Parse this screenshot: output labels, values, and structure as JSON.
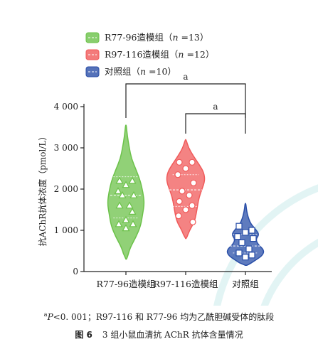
{
  "chart_data": {
    "type": "violin",
    "ylabel": "抗AChR抗体浓度（pmol/L）",
    "ylim": [
      0,
      4000
    ],
    "yticks": [
      0,
      1000,
      2000,
      3000,
      4000
    ],
    "ytick_labels": [
      "0",
      "1 000",
      "2 000",
      "3 000",
      "4 000"
    ],
    "categories": [
      "R77-96造模组",
      "R97-116造模组",
      "对照组"
    ],
    "legend_position": "top-left",
    "legend": [
      {
        "prefix": "R77-96造模组（",
        "n_label": "n",
        "suffix": " =13）"
      },
      {
        "prefix": "R97-116造模组（",
        "n_label": "n",
        "suffix": " =12）"
      },
      {
        "prefix": "对照组（",
        "n_label": "n",
        "suffix": " =10）"
      }
    ],
    "series": [
      {
        "name": "R77-96造模组",
        "color": "#6cc24a",
        "marker": "triangle",
        "median": 1850,
        "quartiles": [
          1300,
          2300
        ],
        "range": [
          300,
          3550
        ],
        "values": [
          2200,
          2200,
          2100,
          1950,
          1850,
          1850,
          1600,
          1600,
          1450,
          1250,
          1150,
          1150,
          1050
        ]
      },
      {
        "name": "R97-116造模组",
        "color": "#f05a5a",
        "marker": "circle",
        "median": 1980,
        "quartiles": [
          1580,
          2350
        ],
        "range": [
          800,
          3200
        ],
        "values": [
          2650,
          2650,
          2500,
          2350,
          2150,
          1950,
          1850,
          1700,
          1600,
          1500,
          1350,
          1200
        ]
      },
      {
        "name": "对照组",
        "color": "#2a4fa8",
        "marker": "square",
        "median": 620,
        "quartiles": [
          450,
          900
        ],
        "range": [
          150,
          1650
        ],
        "values": [
          1100,
          1000,
          950,
          850,
          800,
          700,
          550,
          450,
          400,
          350
        ]
      }
    ],
    "annotations": [
      {
        "from": 0,
        "to": 2,
        "label": "a"
      },
      {
        "from": 1,
        "to": 2,
        "label": "a"
      }
    ]
  },
  "note": {
    "sup": "a",
    "p_symbol": "P",
    "text": "<0. 001；R97-116 和 R77-96 均为乙酰胆碱受体的肽段"
  },
  "caption": {
    "label": "图 6",
    "text": "3 组小鼠血清抗 AChR 抗体含量情况"
  }
}
